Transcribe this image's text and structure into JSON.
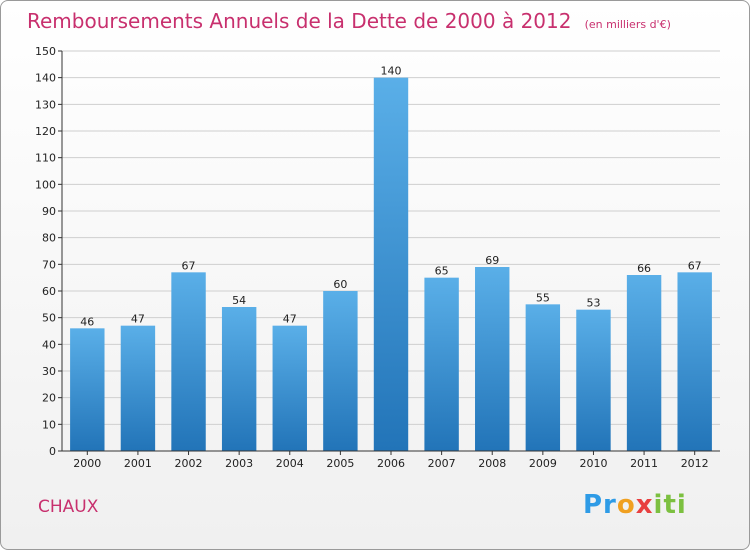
{
  "header": {
    "title": "Remboursements Annuels de la Dette de 2000 à 2012",
    "unit": "(en milliers d'€)"
  },
  "footer": {
    "commune": "CHAUX",
    "logo_text": "Proxiti"
  },
  "colors": {
    "bar_top": "#5aafe8",
    "bar_bottom": "#2274b8",
    "title": "#c8306e",
    "grid": "#cfcfcf"
  },
  "chart_data": {
    "type": "bar",
    "title": "Remboursements Annuels de la Dette de 2000 à 2012",
    "subtitle": "(en milliers d'€)",
    "categories": [
      "2000",
      "2001",
      "2002",
      "2003",
      "2004",
      "2005",
      "2006",
      "2007",
      "2008",
      "2009",
      "2010",
      "2011",
      "2012"
    ],
    "values": [
      46,
      47,
      67,
      54,
      47,
      60,
      140,
      65,
      69,
      55,
      53,
      66,
      67
    ],
    "ylim": [
      0,
      150
    ],
    "ytick_step": 10,
    "grid": true,
    "data_labels": true
  }
}
